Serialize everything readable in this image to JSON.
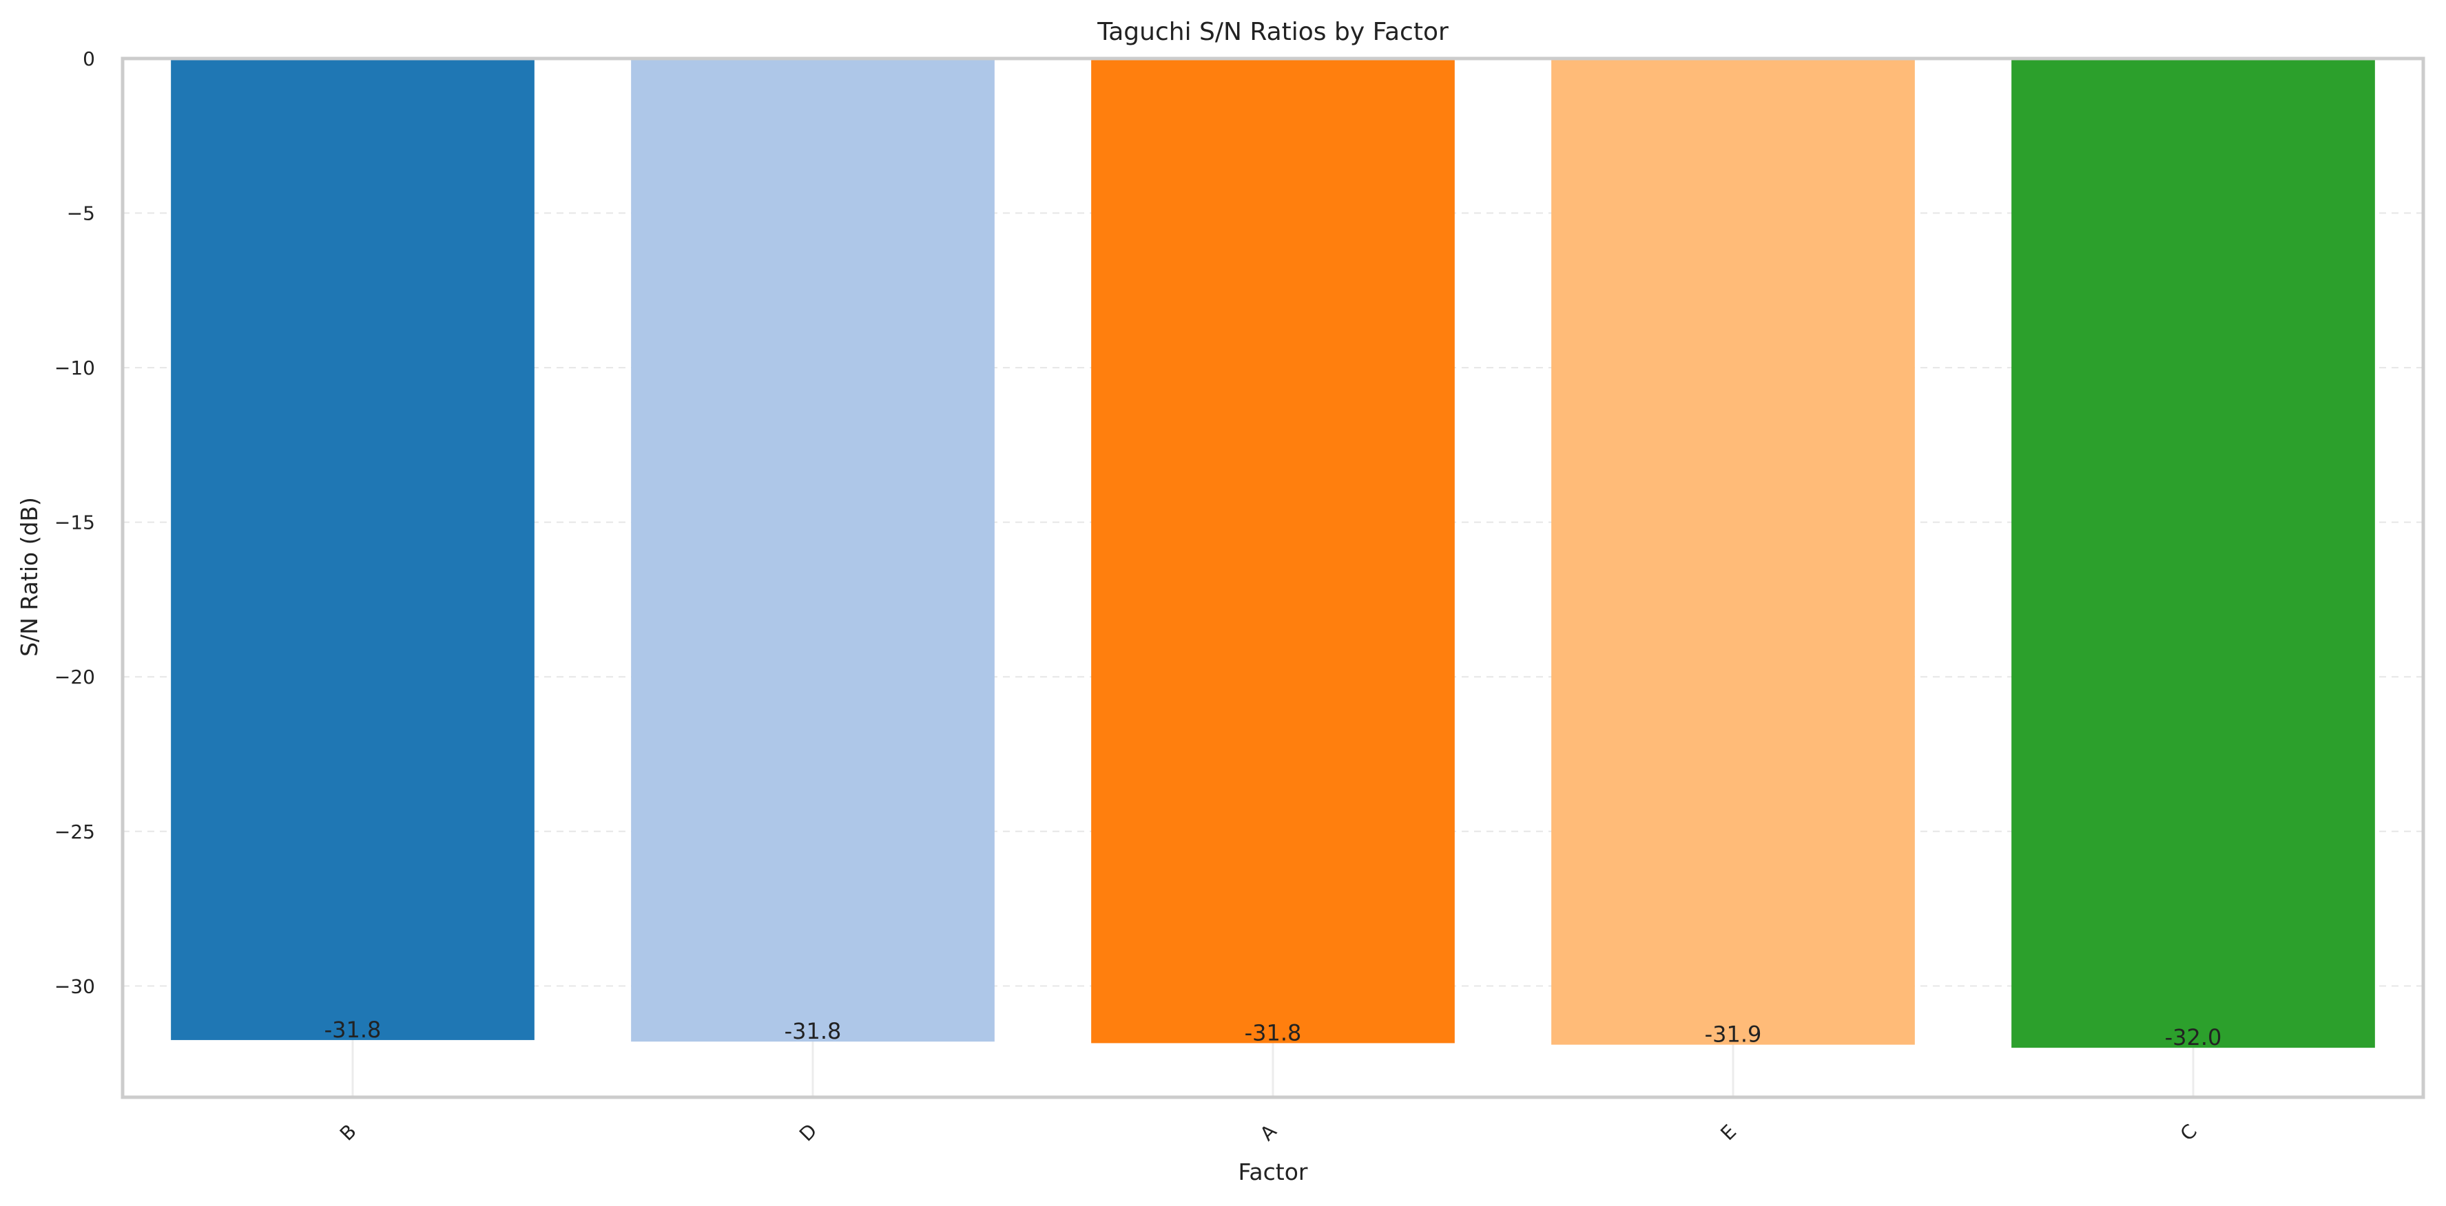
{
  "chart_data": {
    "type": "bar",
    "title": "Taguchi S/N Ratios by Factor",
    "xlabel": "Factor",
    "ylabel": "S/N Ratio (dB)",
    "categories": [
      "B",
      "D",
      "A",
      "E",
      "C"
    ],
    "values": [
      -31.75,
      -31.8,
      -31.85,
      -31.9,
      -32.0
    ],
    "data_labels": [
      "-31.8",
      "-31.8",
      "-31.8",
      "-31.9",
      "-32.0"
    ],
    "colors": [
      "#1f77b4",
      "#aec7e8",
      "#ff7f0e",
      "#ffbb78",
      "#2ca02c"
    ],
    "ylim": [
      -33.6,
      0
    ],
    "yticks": [
      0,
      -5,
      -10,
      -15,
      -20,
      -25,
      -30
    ],
    "ytick_labels": [
      "0",
      "−5",
      "−10",
      "−15",
      "−20",
      "−25",
      "−30"
    ],
    "grid": true,
    "legend": "none"
  }
}
